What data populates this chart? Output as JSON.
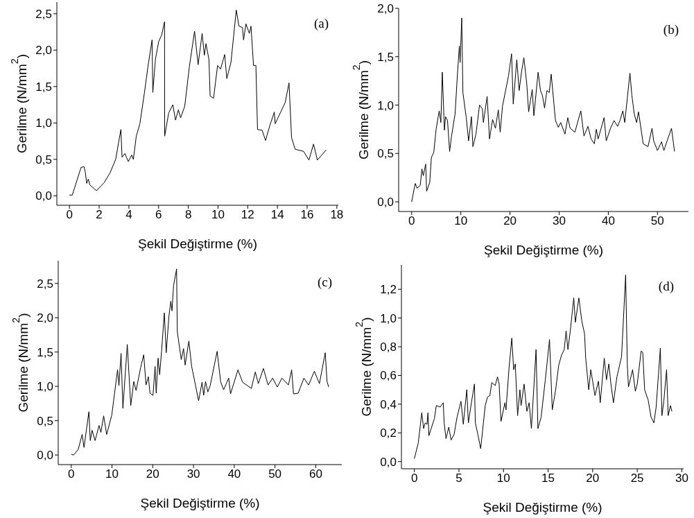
{
  "chart_data": [
    {
      "type": "line",
      "xlabel": "Şekil Değiştirme (%)",
      "ylabel": "Gerilme (N/mm$^{2}$)",
      "annotations": [
        "(a)"
      ],
      "color": "#000000",
      "x": [
        0,
        0.19,
        0.78,
        0.98,
        1.06,
        1.16,
        1.27,
        1.37,
        1.82,
        2.33,
        2.72,
        3.11,
        3.46,
        3.54,
        3.73,
        3.96,
        4.19,
        4.3,
        4.5,
        4.74,
        5.05,
        5.28,
        5.56,
        5.61,
        5.79,
        6.01,
        6.21,
        6.4,
        6.41,
        6.68,
        6.96,
        7.14,
        7.33,
        7.48,
        7.76,
        8.07,
        8.42,
        8.66,
        8.93,
        9.08,
        9.19,
        9.39,
        9.47,
        9.7,
        9.97,
        10.17,
        10.45,
        10.59,
        10.87,
        11.23,
        11.41,
        11.65,
        11.72,
        11.88,
        12.11,
        12.22,
        12.39,
        12.55,
        12.66,
        12.97,
        13.2,
        13.48,
        13.79,
        13.85,
        14.52,
        14.78,
        14.95,
        15.19,
        15.76,
        16.12,
        16.43,
        16.69,
        17.28
      ],
      "values": [
        0.01,
        0.01,
        0.39,
        0.4,
        0.33,
        0.17,
        0.23,
        0.15,
        0.07,
        0.18,
        0.31,
        0.5,
        0.91,
        0.53,
        0.58,
        0.47,
        0.56,
        0.5,
        0.82,
        0.99,
        1.42,
        1.77,
        2.14,
        1.42,
        1.88,
        2.12,
        2.21,
        2.39,
        0.82,
        1.14,
        1.25,
        1.04,
        1.18,
        1.07,
        1.23,
        1.77,
        2.26,
        1.8,
        2.23,
        1.93,
        2.09,
        1.87,
        1.37,
        1.34,
        1.79,
        1.74,
        1.94,
        1.61,
        1.83,
        2.55,
        2.33,
        2.31,
        2.14,
        2.36,
        2.23,
        2.33,
        1.79,
        1.79,
        0.91,
        0.9,
        0.76,
        0.96,
        1.15,
        0.99,
        1.28,
        1.55,
        0.8,
        0.64,
        0.61,
        0.49,
        0.71,
        0.49,
        0.63
      ],
      "xlim": [
        -0.85,
        18.1
      ],
      "xticks": [
        0,
        2,
        4,
        6,
        8,
        10,
        12,
        14,
        16,
        18
      ],
      "ylim": [
        -0.13,
        2.66
      ],
      "yticks": [
        {
          "value": 0,
          "label": "0,0"
        },
        {
          "value": 0.5,
          "label": "0,5"
        },
        {
          "value": 1,
          "label": "1,0"
        },
        {
          "value": 1.5,
          "label": "1,5"
        },
        {
          "value": 2,
          "label": "2,0"
        },
        {
          "value": 2.5,
          "label": "2,5"
        }
      ]
    },
    {
      "type": "line",
      "xlabel": "Şekil Değiştirme (%)",
      "ylabel": "Gerilme (N/mm$^{2}$)",
      "annotations": [
        "(b)"
      ],
      "color": "#000000",
      "x": [
        0,
        0.72,
        1.1,
        1.74,
        2.08,
        2.36,
        2.85,
        3.04,
        3.67,
        4.01,
        4.49,
        4.97,
        5.6,
        5.94,
        6.23,
        6.66,
        6.9,
        7.29,
        7.72,
        8.11,
        8.83,
        9.31,
        9.7,
        9.85,
        10.18,
        10.42,
        11.1,
        11.58,
        12.16,
        12.45,
        13.08,
        13.8,
        14.38,
        14.58,
        15.35,
        15.83,
        16.46,
        17.04,
        17.62,
        18,
        18.48,
        19.69,
        20.32,
        20.66,
        21.38,
        21.86,
        22.34,
        22.82,
        23.41,
        23.79,
        24.52,
        24.86,
        25.72,
        26.2,
        26.59,
        27.03,
        27.51,
        27.99,
        28.38,
        29.25,
        29.83,
        30.31,
        31.18,
        31.76,
        32.24,
        33.2,
        34.41,
        35.04,
        35.86,
        36.49,
        37.16,
        37.55,
        37.93,
        39.14,
        39.58,
        40.44,
        41.17,
        41.89,
        42.37,
        42.95,
        43.34,
        44.4,
        44.79,
        45.27,
        45.75,
        46.14,
        47.1,
        48.07,
        48.89,
        49.23,
        50,
        50.82,
        51.3,
        52.03,
        52.85,
        53.47
      ],
      "values": [
        0,
        0.19,
        0.14,
        0.17,
        0.34,
        0.27,
        0.39,
        0.11,
        0.2,
        0.46,
        0.51,
        0.75,
        0.94,
        0.82,
        1.34,
        0.74,
        0.88,
        0.84,
        0.52,
        0.68,
        0.91,
        1.32,
        1.61,
        1.44,
        1.9,
        1.13,
        0.87,
        0.63,
        0.88,
        0.57,
        0.7,
        1,
        0.96,
        0.82,
        1.09,
        0.65,
        0.85,
        0.76,
        0.95,
        0.72,
        0.99,
        1.3,
        1.53,
        1.01,
        1.47,
        1.15,
        1.34,
        1.49,
        1.22,
        0.93,
        1.16,
        0.89,
        1.34,
        1.15,
        1.1,
        0.97,
        1.15,
        1.13,
        1.32,
        0.84,
        0.77,
        0.82,
        0.7,
        0.87,
        0.76,
        0.72,
        0.94,
        0.68,
        0.78,
        0.65,
        0.6,
        0.75,
        0.65,
        0.87,
        0.63,
        0.76,
        0.84,
        0.78,
        0.84,
        0.94,
        0.82,
        1.33,
        1.1,
        0.91,
        0.82,
        0.93,
        0.6,
        0.57,
        0.76,
        0.63,
        0.53,
        0.62,
        0.53,
        0.64,
        0.76,
        0.52
      ],
      "xlim": [
        -2.65,
        56.3
      ],
      "xticks": [
        0,
        10,
        20,
        30,
        40,
        50
      ],
      "ylim": [
        -0.1,
        2
      ],
      "yticks": [
        {
          "value": 0,
          "label": "0,0"
        },
        {
          "value": 0.5,
          "label": "0,5"
        },
        {
          "value": 1,
          "label": "1,0"
        },
        {
          "value": 1.5,
          "label": "1,5"
        },
        {
          "value": 2,
          "label": "2,0"
        }
      ]
    },
    {
      "type": "line",
      "xlabel": "Şekil Değiştirme (%)",
      "ylabel": "Gerilme (N/mm$^{2}$)",
      "annotations": [
        "(c)"
      ],
      "color": "#000000",
      "x": [
        0,
        0.57,
        1.7,
        2.67,
        3.13,
        4.32,
        4.66,
        5.11,
        5.85,
        6.82,
        7.27,
        7.95,
        8.69,
        9.94,
        11.36,
        11.7,
        12.22,
        12.67,
        13.75,
        14.6,
        15.34,
        15.91,
        17.05,
        17.78,
        18.35,
        18.92,
        19.32,
        20.06,
        20.57,
        20.85,
        21.31,
        21.7,
        22.16,
        22.84,
        23.3,
        23.98,
        24.43,
        24.72,
        25.11,
        25.85,
        26.02,
        26.99,
        27.56,
        27.95,
        28.86,
        29.55,
        30.51,
        31.25,
        32.1,
        32.5,
        32.95,
        33.52,
        34.09,
        35.8,
        36.65,
        37.39,
        38.64,
        39.09,
        40.91,
        42.05,
        44.2,
        45.17,
        45.91,
        47.16,
        48.3,
        49.43,
        50.57,
        51.7,
        53.3,
        54.09,
        54.55,
        55.68,
        57.1,
        58.24,
        59.66,
        60.91,
        62.33,
        62.78,
        63.18
      ],
      "values": [
        0.01,
        0,
        0.08,
        0.3,
        0.11,
        0.63,
        0.21,
        0.36,
        0.21,
        0.43,
        0.33,
        0.57,
        0.3,
        0.58,
        1.24,
        1.01,
        1.48,
        0.68,
        1.61,
        0.72,
        1.07,
        0.94,
        1.28,
        1.46,
        1.02,
        1.14,
        0.9,
        0.87,
        1.29,
        0.9,
        1.41,
        1.17,
        1.51,
        2.07,
        1.49,
        2.03,
        2.24,
        2.1,
        2.47,
        2.71,
        1.8,
        1.39,
        1.55,
        1.31,
        1.66,
        1.29,
        1.01,
        0.79,
        1.06,
        0.87,
        1.07,
        0.92,
        1.01,
        1.51,
        1.07,
        0.95,
        1.12,
        0.89,
        1.24,
        1.06,
        0.97,
        1.21,
        1.04,
        1.26,
        1.02,
        1.12,
        0.99,
        1.12,
        1.02,
        1.24,
        0.89,
        0.9,
        1.12,
        1.02,
        1.22,
        1.04,
        1.49,
        1.07,
        0.99
      ],
      "xlim": [
        -3.2,
        66.4
      ],
      "xticks": [
        0,
        10,
        20,
        30,
        40,
        50,
        60
      ],
      "ylim": [
        -0.14,
        2.83
      ],
      "yticks": [
        {
          "value": 0,
          "label": "0,0"
        },
        {
          "value": 0.5,
          "label": "0,5"
        },
        {
          "value": 1,
          "label": "1,0"
        },
        {
          "value": 1.5,
          "label": "1,5"
        },
        {
          "value": 2,
          "label": "2,0"
        },
        {
          "value": 2.5,
          "label": "2,5"
        }
      ]
    },
    {
      "type": "line",
      "xlabel": "Şekil Değiştirme (%)",
      "ylabel": "Gerilme (N/mm$^{2}$)",
      "annotations": [
        "(d)"
      ],
      "color": "#000000",
      "x": [
        0,
        0.44,
        0.83,
        1.04,
        1.22,
        1.42,
        1.53,
        1.63,
        1.94,
        2.25,
        2.46,
        2.9,
        3.24,
        3.34,
        3.55,
        3.86,
        4.12,
        4.46,
        4.79,
        5.23,
        5.49,
        5.88,
        6.06,
        6.4,
        6.74,
        6.84,
        7.12,
        7.44,
        7.95,
        8.21,
        8.47,
        8.68,
        9.07,
        9.33,
        9.51,
        9.72,
        10.16,
        10.28,
        10.62,
        10.93,
        11.14,
        11.32,
        11.58,
        11.84,
        11.97,
        12.31,
        12.62,
        12.88,
        13.13,
        13.65,
        13.86,
        14.22,
        14.69,
        15.16,
        15.47,
        15.85,
        16.19,
        16.5,
        16.81,
        17.02,
        17.23,
        17.49,
        17.88,
        18.06,
        18.45,
        18.78,
        19.09,
        19.22,
        19.56,
        19.79,
        20,
        20.26,
        20.65,
        20.85,
        21.3,
        21.55,
        21.81,
        22.07,
        22.33,
        22.72,
        23.24,
        23.7,
        23.89,
        24.02,
        24.48,
        24.79,
        25,
        25.44,
        25.62,
        25.83,
        26.22,
        26.55,
        26.87,
        27.12,
        27.59,
        27.77,
        27.98,
        28.29,
        28.47,
        28.73,
        28.89
      ],
      "values": [
        0.02,
        0.13,
        0.34,
        0.23,
        0.27,
        0.26,
        0.34,
        0.18,
        0.24,
        0.3,
        0.39,
        0.38,
        0.41,
        0.27,
        0.16,
        0.24,
        0.15,
        0.19,
        0.31,
        0.42,
        0.26,
        0.5,
        0.27,
        0.41,
        0.54,
        0.27,
        0.19,
        0.09,
        0.39,
        0.45,
        0.46,
        0.55,
        0.53,
        0.59,
        0.54,
        0.28,
        0.41,
        0.36,
        0.65,
        0.86,
        0.64,
        0.68,
        0.32,
        0.5,
        0.39,
        0.54,
        0.35,
        0.41,
        0.23,
        0.78,
        0.23,
        0.31,
        0.57,
        0.85,
        0.36,
        0.5,
        0.67,
        0.74,
        0.78,
        0.91,
        0.78,
        0.91,
        1.14,
        0.97,
        1.14,
        0.98,
        0.89,
        0.72,
        0.5,
        0.64,
        0.56,
        0.46,
        0.56,
        0.41,
        0.72,
        0.57,
        0.68,
        0.53,
        0.41,
        0.59,
        0.73,
        1.3,
        0.67,
        0.52,
        0.64,
        0.49,
        0.54,
        0.77,
        0.76,
        0.5,
        0.43,
        0.31,
        0.27,
        0.38,
        0.79,
        0.32,
        0.42,
        0.64,
        0.32,
        0.39,
        0.35
      ],
      "xlim": [
        -1.45,
        30.2
      ],
      "xticks": [
        0,
        5,
        10,
        15,
        20,
        25,
        30
      ],
      "ylim": [
        -0.05,
        1.37
      ],
      "yticks": [
        {
          "value": 0,
          "label": "0,0"
        },
        {
          "value": 0.2,
          "label": "0,2"
        },
        {
          "value": 0.4,
          "label": "0,4"
        },
        {
          "value": 0.6,
          "label": "0,6"
        },
        {
          "value": 0.8,
          "label": "0,8"
        },
        {
          "value": 1,
          "label": "1,0"
        },
        {
          "value": 1.2,
          "label": "1,2"
        }
      ]
    }
  ]
}
